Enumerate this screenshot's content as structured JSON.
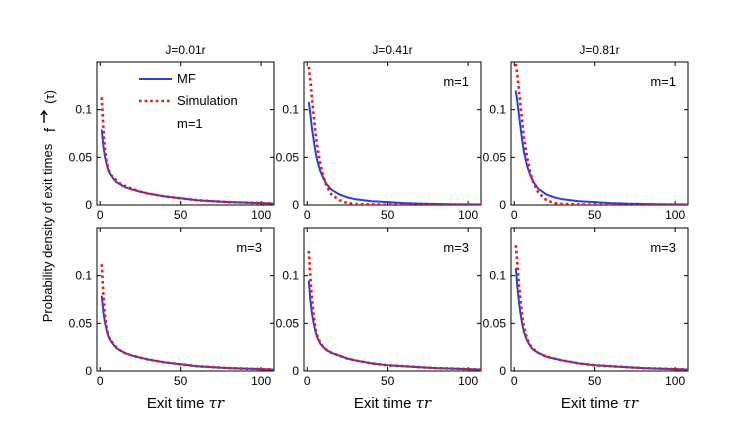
{
  "figure": {
    "ylabel": "Probability density of exit times",
    "ylabel_symbol": "f",
    "ylabel_symbol_arg": "(τ)",
    "xlabel": "Exit time",
    "xlabel_symbol": "τr"
  },
  "legend": {
    "mf": "MF",
    "simulation": "Simulation",
    "annotation": "m=1"
  },
  "colors": {
    "mf": "#2a3fd8",
    "simulation": "#e31a1c"
  },
  "chart_data": [
    {
      "type": "line",
      "title": "J=0.01r",
      "annotation": "",
      "show_legend": true,
      "xlim": [
        -2,
        108
      ],
      "ylim": [
        0,
        0.15
      ],
      "xticks": [
        0,
        50,
        100
      ],
      "yticks": [
        0,
        0.05,
        0.1
      ],
      "xlabel": "",
      "ylabel": "Probability density of exit times",
      "series": [
        {
          "name": "MF",
          "style": "solid",
          "x": [
            1,
            2,
            3,
            4,
            5,
            6,
            8,
            10,
            12,
            15,
            20,
            25,
            30,
            40,
            50,
            60,
            70,
            80,
            90,
            100,
            108
          ],
          "y": [
            0.079,
            0.062,
            0.051,
            0.043,
            0.037,
            0.033,
            0.028,
            0.024,
            0.022,
            0.019,
            0.016,
            0.014,
            0.012,
            0.009,
            0.007,
            0.005,
            0.004,
            0.003,
            0.0025,
            0.002,
            0.0015
          ]
        },
        {
          "name": "Simulation",
          "style": "dotted",
          "x": [
            1,
            2,
            3,
            4,
            5,
            6,
            8,
            10,
            12,
            15,
            20,
            25,
            30,
            40,
            50,
            60,
            70,
            80,
            90,
            100,
            108
          ],
          "y": [
            0.113,
            0.08,
            0.058,
            0.045,
            0.038,
            0.033,
            0.029,
            0.026,
            0.023,
            0.02,
            0.017,
            0.014,
            0.012,
            0.009,
            0.007,
            0.005,
            0.004,
            0.003,
            0.0025,
            0.002,
            0.0015
          ]
        }
      ]
    },
    {
      "type": "line",
      "title": "J=0.41r",
      "annotation": "m=1",
      "show_legend": false,
      "xlim": [
        -2,
        108
      ],
      "ylim": [
        0,
        0.15
      ],
      "xticks": [
        0,
        50,
        100
      ],
      "yticks": [
        0,
        0.05,
        0.1
      ],
      "xlabel": "",
      "ylabel": "",
      "series": [
        {
          "name": "MF",
          "style": "solid",
          "x": [
            1,
            2,
            3,
            4,
            5,
            6,
            8,
            10,
            12,
            15,
            20,
            25,
            30,
            40,
            50,
            60,
            70,
            80,
            90,
            100,
            108
          ],
          "y": [
            0.108,
            0.095,
            0.08,
            0.068,
            0.057,
            0.048,
            0.036,
            0.028,
            0.022,
            0.016,
            0.011,
            0.008,
            0.006,
            0.004,
            0.003,
            0.002,
            0.0015,
            0.001,
            0.0008,
            0.0006,
            0.0005
          ]
        },
        {
          "name": "Simulation",
          "style": "dotted",
          "x": [
            1,
            2,
            3,
            4,
            5,
            6,
            8,
            10,
            12,
            15,
            20,
            25,
            30,
            40,
            50,
            60,
            70,
            80,
            90,
            100,
            108
          ],
          "y": [
            0.145,
            0.13,
            0.112,
            0.094,
            0.078,
            0.064,
            0.044,
            0.03,
            0.02,
            0.011,
            0.005,
            0.002,
            0.001,
            0.0005,
            0.0003,
            0.0002,
            0.0001,
            0.0001,
            0.0001,
            0.0001,
            0.0001
          ]
        }
      ]
    },
    {
      "type": "line",
      "title": "J=0.81r",
      "annotation": "m=1",
      "show_legend": false,
      "xlim": [
        -2,
        108
      ],
      "ylim": [
        0,
        0.15
      ],
      "xticks": [
        0,
        50,
        100
      ],
      "yticks": [
        0,
        0.05,
        0.1
      ],
      "xlabel": "",
      "ylabel": "",
      "series": [
        {
          "name": "MF",
          "style": "solid",
          "x": [
            1,
            2,
            3,
            4,
            5,
            6,
            8,
            10,
            12,
            15,
            20,
            25,
            30,
            40,
            50,
            60,
            70,
            80,
            90,
            100,
            108
          ],
          "y": [
            0.12,
            0.108,
            0.094,
            0.08,
            0.067,
            0.056,
            0.041,
            0.031,
            0.024,
            0.017,
            0.011,
            0.008,
            0.006,
            0.004,
            0.003,
            0.002,
            0.0015,
            0.001,
            0.0008,
            0.0006,
            0.0005
          ]
        },
        {
          "name": "Simulation",
          "style": "dotted",
          "x": [
            1,
            2,
            3,
            4,
            5,
            6,
            8,
            10,
            12,
            15,
            20,
            25,
            30,
            40,
            50,
            60,
            70,
            80,
            90,
            100,
            108
          ],
          "y": [
            0.148,
            0.136,
            0.12,
            0.103,
            0.087,
            0.072,
            0.05,
            0.034,
            0.023,
            0.013,
            0.005,
            0.002,
            0.001,
            0.0005,
            0.0003,
            0.0002,
            0.0001,
            0.0001,
            0.0001,
            0.0001,
            0.0001
          ]
        }
      ]
    },
    {
      "type": "line",
      "title": "",
      "annotation": "m=3",
      "show_legend": false,
      "xlim": [
        -2,
        108
      ],
      "ylim": [
        0,
        0.15
      ],
      "xticks": [
        0,
        50,
        100
      ],
      "yticks": [
        0,
        0.05,
        0.1
      ],
      "xlabel": "Exit time τr",
      "ylabel": "",
      "series": [
        {
          "name": "MF",
          "style": "solid",
          "x": [
            1,
            2,
            3,
            4,
            5,
            6,
            8,
            10,
            12,
            15,
            20,
            25,
            30,
            40,
            50,
            60,
            70,
            80,
            90,
            100,
            108
          ],
          "y": [
            0.079,
            0.062,
            0.051,
            0.043,
            0.037,
            0.033,
            0.028,
            0.024,
            0.022,
            0.019,
            0.016,
            0.014,
            0.012,
            0.009,
            0.007,
            0.005,
            0.004,
            0.003,
            0.0025,
            0.002,
            0.0015
          ]
        },
        {
          "name": "Simulation",
          "style": "dotted",
          "x": [
            1,
            2,
            3,
            4,
            5,
            6,
            8,
            10,
            12,
            15,
            20,
            25,
            30,
            40,
            50,
            60,
            70,
            80,
            90,
            100,
            108
          ],
          "y": [
            0.112,
            0.08,
            0.058,
            0.045,
            0.038,
            0.033,
            0.029,
            0.025,
            0.022,
            0.019,
            0.016,
            0.014,
            0.012,
            0.009,
            0.007,
            0.005,
            0.004,
            0.003,
            0.0025,
            0.002,
            0.0015
          ]
        }
      ]
    },
    {
      "type": "line",
      "title": "",
      "annotation": "m=3",
      "show_legend": false,
      "xlim": [
        -2,
        108
      ],
      "ylim": [
        0,
        0.15
      ],
      "xticks": [
        0,
        50,
        100
      ],
      "yticks": [
        0,
        0.05,
        0.1
      ],
      "xlabel": "Exit time τr",
      "ylabel": "",
      "series": [
        {
          "name": "MF",
          "style": "solid",
          "x": [
            1,
            2,
            3,
            4,
            5,
            6,
            8,
            10,
            12,
            15,
            20,
            25,
            30,
            40,
            50,
            60,
            70,
            80,
            90,
            100,
            108
          ],
          "y": [
            0.095,
            0.074,
            0.06,
            0.05,
            0.042,
            0.036,
            0.029,
            0.025,
            0.022,
            0.019,
            0.016,
            0.013,
            0.011,
            0.008,
            0.006,
            0.005,
            0.004,
            0.003,
            0.0025,
            0.002,
            0.0015
          ]
        },
        {
          "name": "Simulation",
          "style": "dotted",
          "x": [
            1,
            2,
            3,
            4,
            5,
            6,
            8,
            10,
            12,
            15,
            20,
            25,
            30,
            40,
            50,
            60,
            70,
            80,
            90,
            100,
            108
          ],
          "y": [
            0.126,
            0.098,
            0.075,
            0.058,
            0.046,
            0.038,
            0.03,
            0.025,
            0.022,
            0.019,
            0.016,
            0.013,
            0.011,
            0.008,
            0.006,
            0.005,
            0.004,
            0.003,
            0.0025,
            0.002,
            0.0015
          ]
        }
      ]
    },
    {
      "type": "line",
      "title": "",
      "annotation": "m=3",
      "show_legend": false,
      "xlim": [
        -2,
        108
      ],
      "ylim": [
        0,
        0.15
      ],
      "xticks": [
        0,
        50,
        100
      ],
      "yticks": [
        0,
        0.05,
        0.1
      ],
      "xlabel": "Exit time τr",
      "ylabel": "",
      "series": [
        {
          "name": "MF",
          "style": "solid",
          "x": [
            1,
            2,
            3,
            4,
            5,
            6,
            8,
            10,
            12,
            15,
            20,
            25,
            30,
            40,
            50,
            60,
            70,
            80,
            90,
            100,
            108
          ],
          "y": [
            0.108,
            0.088,
            0.072,
            0.059,
            0.049,
            0.041,
            0.032,
            0.026,
            0.022,
            0.019,
            0.015,
            0.013,
            0.011,
            0.008,
            0.006,
            0.005,
            0.004,
            0.003,
            0.0025,
            0.002,
            0.0015
          ]
        },
        {
          "name": "Simulation",
          "style": "dotted",
          "x": [
            1,
            2,
            3,
            4,
            5,
            6,
            8,
            10,
            12,
            15,
            20,
            25,
            30,
            40,
            50,
            60,
            70,
            80,
            90,
            100,
            108
          ],
          "y": [
            0.132,
            0.112,
            0.09,
            0.072,
            0.057,
            0.046,
            0.034,
            0.027,
            0.023,
            0.019,
            0.015,
            0.013,
            0.011,
            0.008,
            0.006,
            0.005,
            0.004,
            0.003,
            0.0025,
            0.002,
            0.0015
          ]
        }
      ]
    }
  ]
}
